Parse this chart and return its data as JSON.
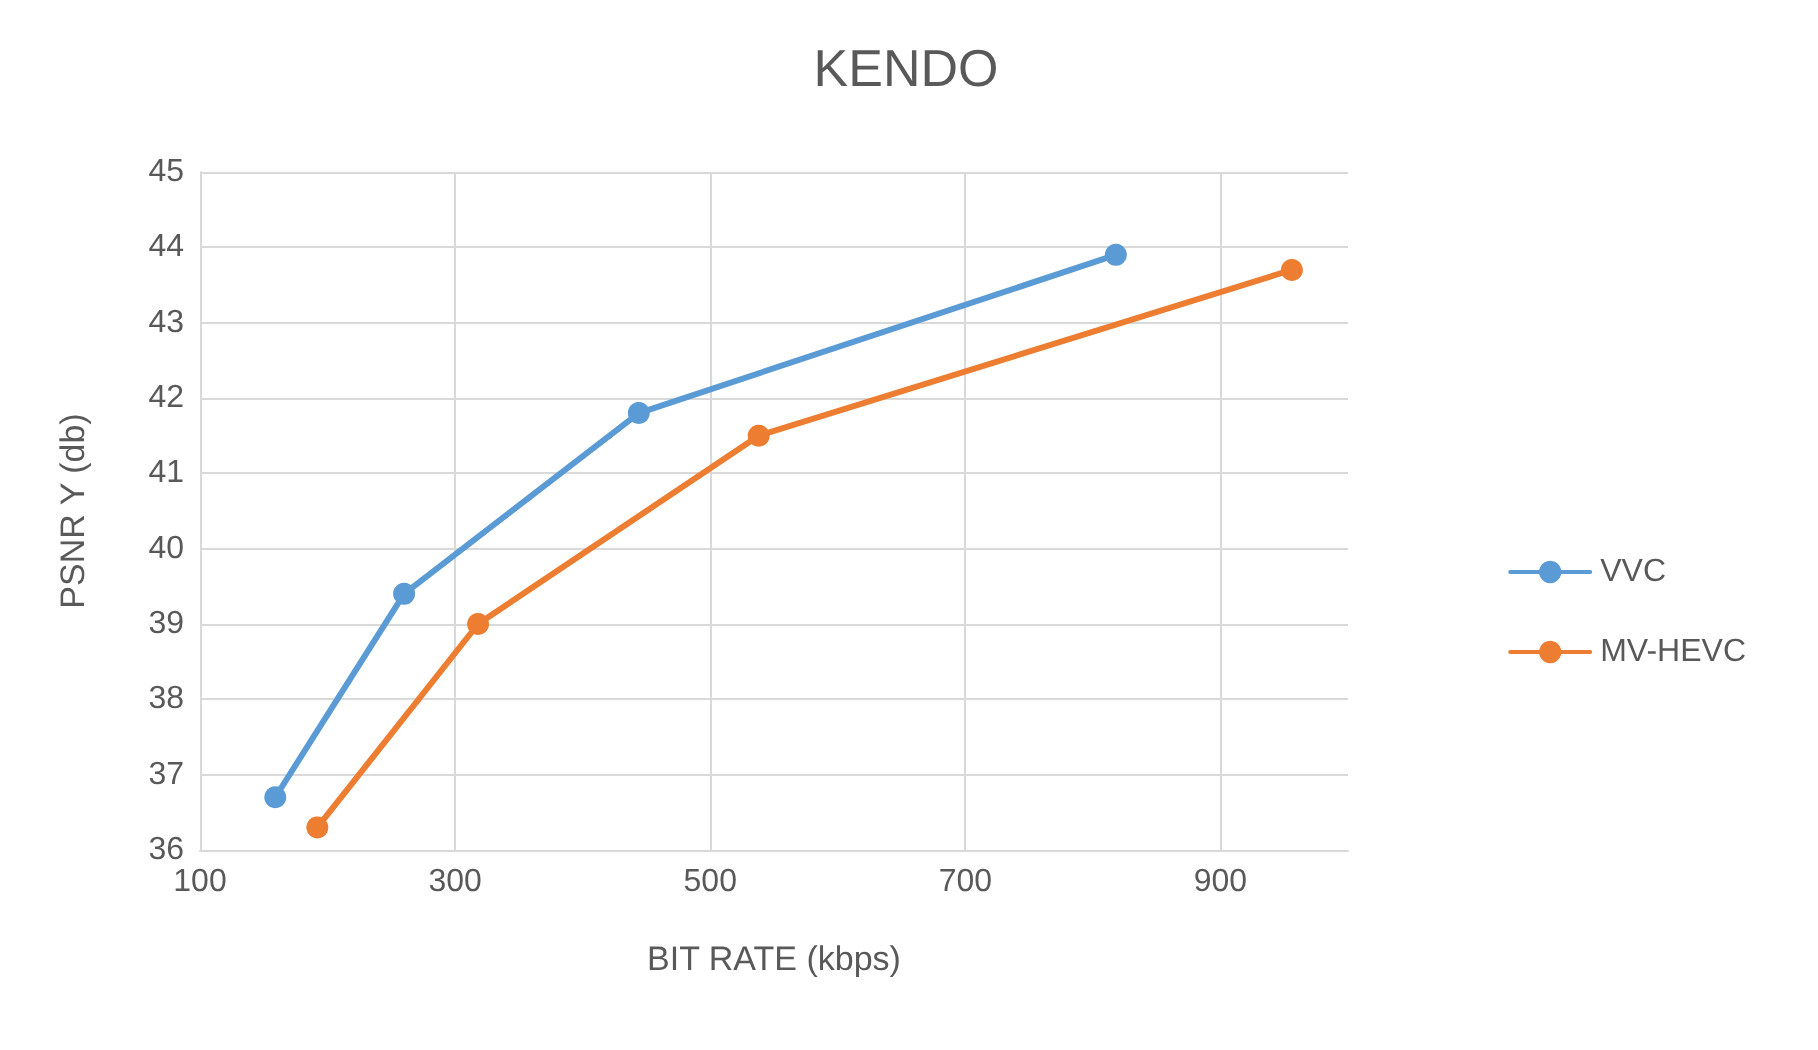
{
  "chart_data": {
    "type": "line",
    "title": "KENDO",
    "xlabel": "BIT RATE (kbps)",
    "ylabel": "PSNR Y (db)",
    "xlim": [
      100,
      1000
    ],
    "xticks": [
      100,
      300,
      500,
      700,
      900
    ],
    "ylim": [
      36,
      45
    ],
    "yticks": [
      36,
      37,
      38,
      39,
      40,
      41,
      42,
      43,
      44,
      45
    ],
    "grid": true,
    "legend": "right",
    "marker": "circle",
    "line_style": "solid",
    "series": [
      {
        "name": "VVC",
        "color": "#5b9bd5",
        "x": [
          159,
          260,
          444,
          818
        ],
        "values": [
          36.7,
          39.4,
          41.8,
          43.9
        ]
      },
      {
        "name": "MV-HEVC",
        "color": "#ed7d31",
        "x": [
          192,
          318,
          538,
          956
        ],
        "values": [
          36.3,
          39.0,
          41.5,
          43.7
        ]
      }
    ]
  }
}
